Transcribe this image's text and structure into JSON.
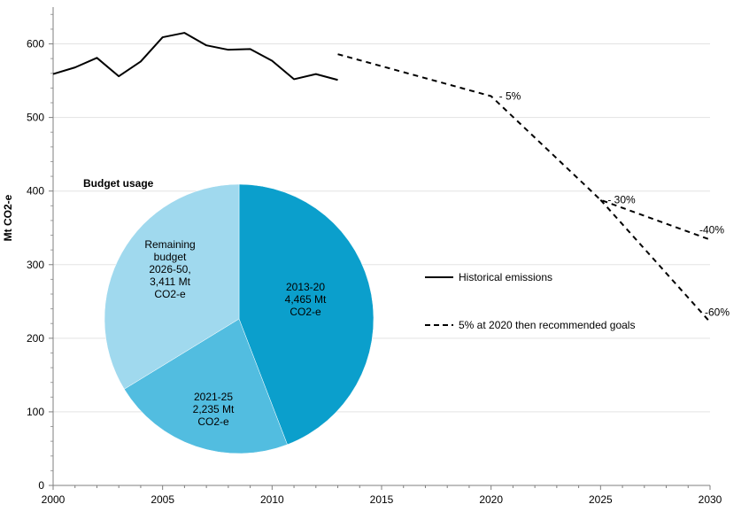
{
  "chart_data": [
    {
      "type": "line",
      "title": "",
      "xlabel": "",
      "ylabel": "Mt CO2-e",
      "xlim": [
        2000,
        2030
      ],
      "ylim": [
        0,
        650
      ],
      "xticks": [
        "2000",
        "2005",
        "2010",
        "2015",
        "2020",
        "2025",
        "2030"
      ],
      "xtick_values": [
        2000,
        2005,
        2010,
        2015,
        2020,
        2025,
        2030
      ],
      "yticks": [
        "0",
        "100",
        "200",
        "300",
        "400",
        "500",
        "600"
      ],
      "ytick_values": [
        0,
        100,
        200,
        300,
        400,
        500,
        600
      ],
      "grid": "horizontal",
      "series": [
        {
          "name": "Historical emissions",
          "style": "solid",
          "color": "#000000",
          "x": [
            2000,
            2001,
            2002,
            2003,
            2004,
            2005,
            2006,
            2007,
            2008,
            2009,
            2010,
            2011,
            2012,
            2013
          ],
          "y": [
            559,
            568,
            581,
            556,
            576,
            609,
            615,
            598,
            592,
            593,
            577,
            552,
            559,
            551
          ]
        },
        {
          "name": "5% at 2020 then recommended goals",
          "style": "dashed",
          "color": "#000000",
          "segments": [
            {
              "x": [
                2013,
                2020,
                2025,
                2030
              ],
              "y": [
                586,
                529,
                388,
                334
              ]
            },
            {
              "x": [
                2025,
                2030
              ],
              "y": [
                388,
                222
              ]
            }
          ]
        }
      ],
      "annotations": [
        {
          "text": "- 5%",
          "x": 2020,
          "y": 529
        },
        {
          "text": "- 30%",
          "x": 2025,
          "y": 388
        },
        {
          "text": "-40%",
          "x": 2030,
          "y": 334
        },
        {
          "text": "-60%",
          "x": 2030,
          "y": 222
        }
      ],
      "legend_position": "middle-right",
      "legend": [
        {
          "label": "Historical emissions",
          "style": "solid"
        },
        {
          "label": "5% at 2020 then recommended goals",
          "style": "dashed"
        }
      ]
    },
    {
      "type": "pie",
      "title": "Budget usage",
      "slices": [
        {
          "label": "2013-20\n4,465 Mt\nCO2-e",
          "value": 4465,
          "color": "#0b9fcc"
        },
        {
          "label": "2021-25\n2,235 Mt\nCO2-e",
          "value": 2235,
          "color": "#52bde0"
        },
        {
          "label": "Remaining\nbudget\n2026-50,\n3,411 Mt\nCO2-e",
          "value": 3411,
          "color": "#a0d9ee"
        }
      ]
    }
  ]
}
